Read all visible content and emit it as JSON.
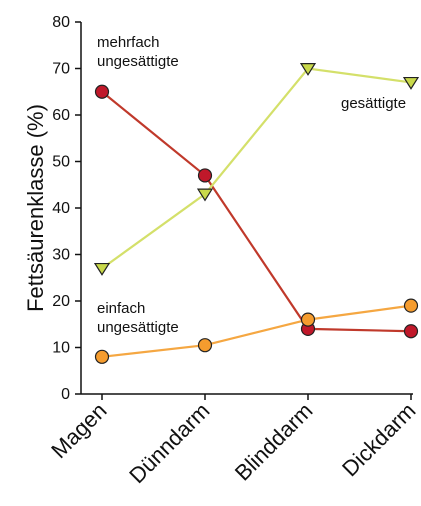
{
  "chart_data": {
    "type": "line",
    "categories": [
      "Magen",
      "Dünndarm",
      "Blinddarm",
      "Dickdarm"
    ],
    "ylabel": "Fettsäurenklasse (%)",
    "xlabel": "",
    "ylim": [
      0,
      80
    ],
    "yticks": [
      0,
      10,
      20,
      30,
      40,
      50,
      60,
      70,
      80
    ],
    "grid": false,
    "series": [
      {
        "name": "mehrfach ungesättigte",
        "values": [
          65,
          47,
          14,
          13.5
        ],
        "marker": "circle",
        "color": "#c0392b",
        "fill": "#c0182a"
      },
      {
        "name": "gesättigte",
        "values": [
          27,
          43,
          70,
          67
        ],
        "marker": "triangle-down",
        "color": "#d4e06a",
        "fill": "#c9d94a"
      },
      {
        "name": "einfach ungesättigte",
        "values": [
          8,
          10.5,
          16,
          19
        ],
        "marker": "circle",
        "color": "#f5a742",
        "fill": "#f59c2e"
      }
    ]
  }
}
